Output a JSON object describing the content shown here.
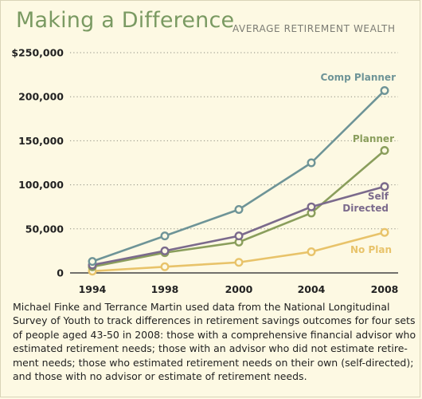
{
  "header": {
    "title": "Making a Difference",
    "subtitle": "AVERAGE RETIREMENT WEALTH"
  },
  "caption": {
    "lines": [
      "Michael Finke and Terrance Martin used data from the National Longitudinal",
      "Survey of Youth to track differences in retirement savings outcomes for four sets",
      "of people aged 43-50 in 2008: those with a comprehensive financial advisor who",
      "estimated retirement needs; those with an advisor who did not estimate retire-",
      "ment needs; those who estimated retirement needs on their own (self-directed);",
      "and those with no advisor or estimate of retirement needs."
    ]
  },
  "chart_data": {
    "type": "line",
    "title": "Making a Difference",
    "subtitle": "AVERAGE RETIREMENT WEALTH",
    "categories": [
      "1994",
      "1998",
      "2000",
      "2004",
      "2008"
    ],
    "ylim": [
      0,
      250000
    ],
    "yticks": [
      0,
      50000,
      100000,
      150000,
      200000,
      250000
    ],
    "ytick_labels": [
      "0",
      "50,000",
      "100,000",
      "150,000",
      "200,000",
      "$250,000"
    ],
    "grid": "horizontal-dotted",
    "series": [
      {
        "name": "Comp Planner",
        "label_lines": [
          "Comp Planner"
        ],
        "color": "#6e9497",
        "values": [
          13000,
          42000,
          72000,
          125000,
          207000
        ]
      },
      {
        "name": "Planner",
        "label_lines": [
          "Planner"
        ],
        "color": "#8a9e5c",
        "values": [
          7000,
          23000,
          35000,
          68000,
          139000
        ]
      },
      {
        "name": "Self Directed",
        "label_lines": [
          "Self",
          "Directed"
        ],
        "color": "#7b6a8c",
        "values": [
          9000,
          25000,
          42000,
          75000,
          98000
        ]
      },
      {
        "name": "No Plan",
        "label_lines": [
          "No Plan"
        ],
        "color": "#e8c36a",
        "values": [
          2000,
          7000,
          12000,
          24000,
          46000
        ]
      }
    ]
  }
}
